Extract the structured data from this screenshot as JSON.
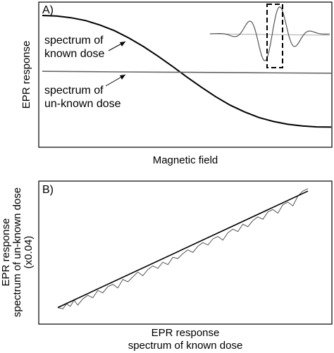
{
  "chart_data": [
    {
      "type": "line",
      "panel_label": "A)",
      "xlabel": "Magnetic field",
      "ylabel": "EPR response",
      "x_ticks_shown": false,
      "y_ticks_shown": false,
      "grid": false,
      "series": [
        {
          "id": "known",
          "description_from_annotation": "spectrum of known dose",
          "color": "#000000",
          "x": [
            0,
            0.05,
            0.1,
            0.15,
            0.2,
            0.25,
            0.3,
            0.35,
            0.4,
            0.45,
            0.5,
            0.55,
            0.6,
            0.65,
            0.7,
            0.75,
            0.8,
            0.85,
            0.9,
            0.95,
            1.0
          ],
          "y": [
            1.0,
            0.995,
            0.98,
            0.955,
            0.915,
            0.865,
            0.8,
            0.725,
            0.64,
            0.55,
            0.455,
            0.365,
            0.28,
            0.205,
            0.145,
            0.095,
            0.06,
            0.035,
            0.02,
            0.012,
            0.01
          ]
        },
        {
          "id": "unknown",
          "description_from_annotation": "spectrum of un-known dose",
          "color": "#666666",
          "x": [
            0,
            0.25,
            0.5,
            0.75,
            1.0
          ],
          "y": [
            0.505,
            0.5,
            0.496,
            0.492,
            0.488
          ]
        }
      ],
      "annotations": [
        {
          "lines": [
            "spectrum of",
            "known dose"
          ],
          "points_to": "known"
        },
        {
          "lines": [
            "spectrum of",
            "un-known dose"
          ],
          "points_to": "unknown"
        }
      ],
      "inset": {
        "description": "full spectra with dashed box marking the region shown in the main plot",
        "known_color": "#555555",
        "unknown_color": "#aaaaaa",
        "box_style": "dashed"
      }
    },
    {
      "type": "scatter",
      "panel_label": "B)",
      "xlabel_lines": [
        "EPR response",
        "spectrum of known dose"
      ],
      "ylabel_lines": [
        "EPR response",
        "spectrum of un-known dose",
        "(x0.04)"
      ],
      "x_ticks_shown": false,
      "y_ticks_shown": false,
      "grid": false,
      "data_line": {
        "color": "#555555",
        "x": [
          0.0,
          0.02,
          0.035,
          0.05,
          0.065,
          0.08,
          0.1,
          0.12,
          0.14,
          0.16,
          0.18,
          0.2,
          0.22,
          0.24,
          0.26,
          0.28,
          0.3,
          0.32,
          0.34,
          0.36,
          0.38,
          0.4,
          0.42,
          0.44,
          0.46,
          0.48,
          0.5,
          0.52,
          0.54,
          0.56,
          0.58,
          0.6,
          0.62,
          0.64,
          0.66,
          0.68,
          0.7,
          0.72,
          0.74,
          0.76,
          0.78,
          0.8,
          0.82,
          0.84,
          0.86,
          0.88,
          0.9,
          0.92,
          0.94,
          0.96,
          0.98,
          1.0
        ],
        "y": [
          0.02,
          0.01,
          0.05,
          0.03,
          0.08,
          0.04,
          0.09,
          0.12,
          0.1,
          0.16,
          0.14,
          0.19,
          0.21,
          0.18,
          0.25,
          0.23,
          0.27,
          0.31,
          0.28,
          0.33,
          0.36,
          0.34,
          0.39,
          0.37,
          0.43,
          0.42,
          0.46,
          0.49,
          0.47,
          0.52,
          0.55,
          0.53,
          0.58,
          0.6,
          0.57,
          0.63,
          0.66,
          0.64,
          0.7,
          0.68,
          0.73,
          0.76,
          0.74,
          0.8,
          0.82,
          0.79,
          0.86,
          0.88,
          0.85,
          0.93,
          0.97,
          0.99
        ]
      },
      "fit_line": {
        "color": "#000000",
        "x": [
          0.0,
          1.0
        ],
        "y": [
          0.02,
          0.97
        ]
      }
    }
  ]
}
